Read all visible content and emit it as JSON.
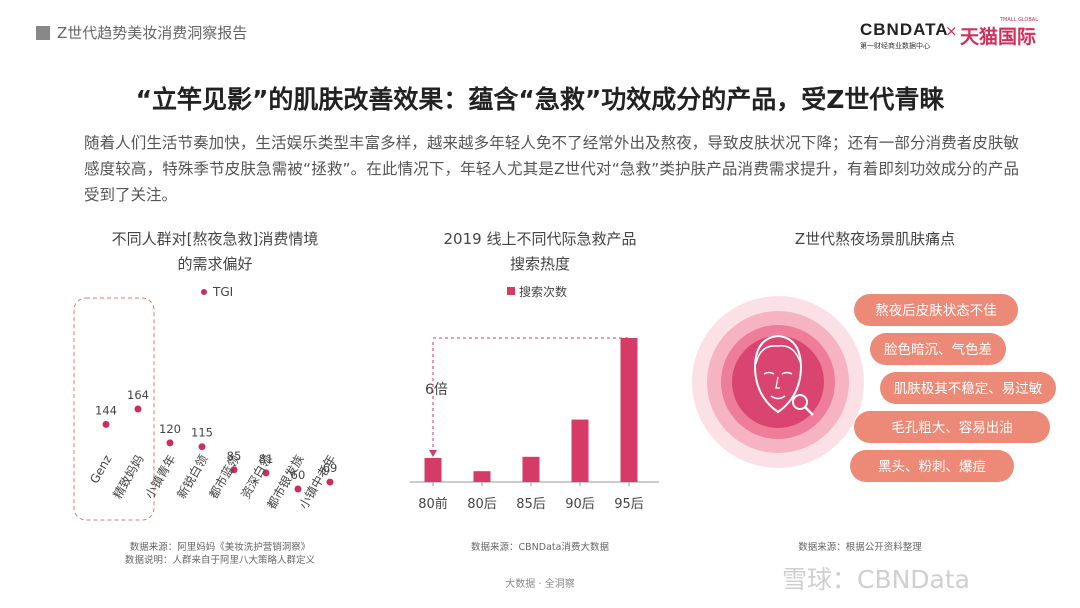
{
  "header": {
    "report_label": "Z世代趋势美妆消费洞察报告",
    "cbn_logo": "CBNDATA",
    "cbn_sub": "第一财经商业数据中心",
    "times": "×",
    "tmall_sub": "TMALL GLOBAL",
    "tmall": "天猫国际"
  },
  "title": "“立竿见影”的肌肤改善效果：蕴含“急救”功效成分的产品，受Z世代青睐",
  "intro": "随着人们生活节奏加快，生活娱乐类型丰富多样，越来越多年轻人免不了经常外出及熬夜，导致皮肤状况下降；还有一部分消费者皮肤敏感度较高，特殊季节皮肤急需被“拯救”。在此情况下，年轻人尤其是Z世代对“急救”类护肤产品消费需求提升，有着即刻功效成分的产品受到了关注。",
  "chart1": {
    "title_line1": "不同人群对[熬夜急救]消费情境",
    "title_line2": "的需求偏好",
    "note_line1": "数据来源：阿里妈妈《美妆洗护营销洞察》",
    "note_line2": "数据说明：人群来自于阿里八大策略人群定义"
  },
  "chart2": {
    "title_line1": "2019 线上不同代际急救产品",
    "title_line2": "搜索热度",
    "note": "数据来源：CBNData消费大数据"
  },
  "chart3": {
    "title": "Z世代熬夜场景肌肤痛点",
    "note": "数据来源：根据公开资料整理",
    "pain_points": [
      "熬夜后皮肤状态不佳",
      "脸色暗沉、气色差",
      "肌肤极其不稳定、易过敏",
      "毛孔粗大、容易出油",
      "黑头、粉刺、爆痘"
    ],
    "colors": {
      "ring_outer": "#fbe1e6",
      "ring_mid": "#f6b3c1",
      "ring_inner": "#ed7d98",
      "core": "#d94471",
      "pill": "#ec8a77",
      "face": "#ffffff"
    }
  },
  "footer": "大数据 · 全洞察",
  "watermark": "雪球：CBNData",
  "chart_data": [
    {
      "type": "scatter",
      "legend": [
        "TGI"
      ],
      "legend_position": "top-center",
      "categories": [
        "Genz",
        "精致妈妈",
        "小镇青年",
        "新锐白领",
        "都市蓝领",
        "资深白领",
        "都市银发族",
        "小镇中老年"
      ],
      "values": [
        144,
        164,
        120,
        115,
        85,
        81,
        60,
        69
      ],
      "highlight_categories": [
        "Genz",
        "精致妈妈"
      ],
      "color": "#c8305b"
    },
    {
      "type": "bar",
      "legend": [
        "搜索次数"
      ],
      "legend_position": "top-center",
      "categories": [
        "80前",
        "80后",
        "85后",
        "90后",
        "95后"
      ],
      "values": [
        1,
        0.45,
        1.05,
        2.6,
        6
      ],
      "annotation": "6倍",
      "color": "#d63a66"
    }
  ]
}
